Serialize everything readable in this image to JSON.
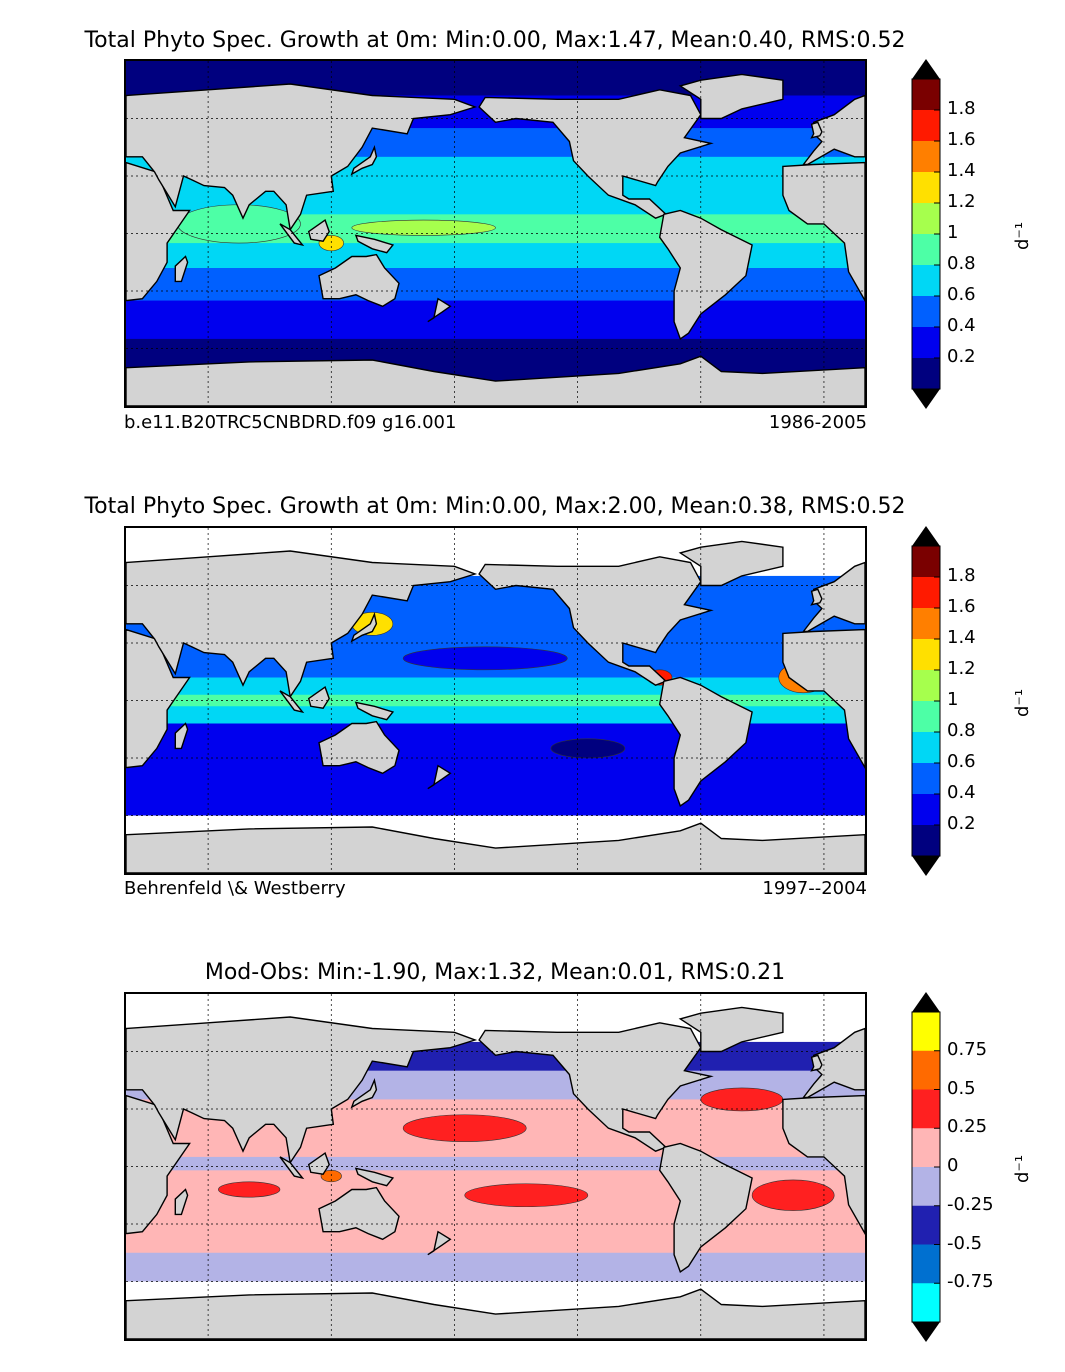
{
  "panels": [
    {
      "id": "model",
      "title": "Total Phyto Spec. Growth at 0m: Min:0.00, Max:1.47, Mean:0.40, RMS:0.52",
      "caption_left": "b.e11.B20TRC5CNBDRD.f09 g16.001",
      "caption_right": "1986-2005",
      "colorbar": {
        "unit": "d⁻¹",
        "ticks": [
          "1.8",
          "1.6",
          "1.4",
          "1.2",
          "1",
          "0.8",
          "0.6",
          "0.4",
          "0.2"
        ],
        "colors": [
          "#7a0000",
          "#ff1a00",
          "#ff7f00",
          "#ffe000",
          "#a6ff4d",
          "#4dffa6",
          "#00d7f5",
          "#0060ff",
          "#0000ee",
          "#00007f"
        ],
        "over_color": "#000000",
        "under_color": "#000000"
      },
      "field": {
        "bands": [
          {
            "lat_north": 90,
            "lat_south": 72,
            "color": "#00007f"
          },
          {
            "lat_north": 72,
            "lat_south": 55,
            "color": "#0000ee"
          },
          {
            "lat_north": 55,
            "lat_south": 40,
            "color": "#0060ff"
          },
          {
            "lat_north": 40,
            "lat_south": 28,
            "color": "#00d7f5"
          },
          {
            "lat_north": 28,
            "lat_south": 10,
            "color": "#00d7f5"
          },
          {
            "lat_north": 10,
            "lat_south": -5,
            "color": "#4dffa6"
          },
          {
            "lat_north": -5,
            "lat_south": -18,
            "color": "#00d7f5"
          },
          {
            "lat_north": -18,
            "lat_south": -35,
            "color": "#0060ff"
          },
          {
            "lat_north": -35,
            "lat_south": -55,
            "color": "#0000ee"
          },
          {
            "lat_north": -55,
            "lat_south": -90,
            "color": "#00007f"
          }
        ],
        "blobs": [
          {
            "lon": 165,
            "lat": 3,
            "rx": 35,
            "ry": 4,
            "color": "#a6ff4d"
          },
          {
            "lon": 120,
            "lat": -5,
            "rx": 6,
            "ry": 4,
            "color": "#ffe000"
          },
          {
            "lon": 75,
            "lat": 5,
            "rx": 30,
            "ry": 10,
            "color": "#4dffa6"
          }
        ]
      }
    },
    {
      "id": "obs",
      "title": "Total Phyto Spec. Growth at 0m: Min:0.00, Max:2.00, Mean:0.38, RMS:0.52",
      "caption_left": "Behrenfeld \\& Westberry",
      "caption_right": "1997--2004",
      "colorbar": {
        "unit": "d⁻¹",
        "ticks": [
          "1.8",
          "1.6",
          "1.4",
          "1.2",
          "1",
          "0.8",
          "0.6",
          "0.4",
          "0.2"
        ],
        "colors": [
          "#7a0000",
          "#ff1a00",
          "#ff7f00",
          "#ffe000",
          "#a6ff4d",
          "#4dffa6",
          "#00d7f5",
          "#0060ff",
          "#0000ee",
          "#00007f"
        ],
        "over_color": "#000000",
        "under_color": "#000000"
      },
      "field": {
        "bands": [
          {
            "lat_north": 90,
            "lat_south": 65,
            "color": "#ffffff"
          },
          {
            "lat_north": 65,
            "lat_south": 45,
            "color": "#0060ff"
          },
          {
            "lat_north": 45,
            "lat_south": 30,
            "color": "#0060ff"
          },
          {
            "lat_north": 30,
            "lat_south": 12,
            "color": "#0060ff"
          },
          {
            "lat_north": 12,
            "lat_south": 3,
            "color": "#00d7f5"
          },
          {
            "lat_north": 3,
            "lat_south": -3,
            "color": "#4dffa6"
          },
          {
            "lat_north": -3,
            "lat_south": -12,
            "color": "#00d7f5"
          },
          {
            "lat_north": -12,
            "lat_south": -40,
            "color": "#0000ee"
          },
          {
            "lat_north": -40,
            "lat_south": -60,
            "color": "#0000ee"
          },
          {
            "lat_north": -60,
            "lat_south": -90,
            "color": "#ffffff"
          }
        ],
        "blobs": [
          {
            "lon": 195,
            "lat": 22,
            "rx": 40,
            "ry": 6,
            "color": "#0000ee"
          },
          {
            "lon": 245,
            "lat": -25,
            "rx": 18,
            "ry": 5,
            "color": "#00007f"
          },
          {
            "lon": 280,
            "lat": 12,
            "rx": 6,
            "ry": 4,
            "color": "#ff1a00"
          },
          {
            "lon": 350,
            "lat": 12,
            "rx": 12,
            "ry": 8,
            "color": "#ff7f00"
          },
          {
            "lon": 140,
            "lat": 40,
            "rx": 10,
            "ry": 6,
            "color": "#ffe000"
          }
        ]
      }
    },
    {
      "id": "diff",
      "title": "Mod-Obs: Min:-1.90, Max:1.32, Mean:0.01, RMS:0.21",
      "caption_left": "",
      "caption_right": "",
      "colorbar": {
        "unit": "d⁻¹",
        "ticks": [
          "0.75",
          "0.5",
          "0.25",
          "0",
          "-0.25",
          "-0.5",
          "-0.75"
        ],
        "colors": [
          "#ffff00",
          "#ff6a00",
          "#ff2020",
          "#ffb6b6",
          "#b3b3e6",
          "#2020b0",
          "#0070d0",
          "#00ffff"
        ],
        "over_color": "#000000",
        "under_color": "#000000"
      },
      "field": {
        "bands": [
          {
            "lat_north": 90,
            "lat_south": 65,
            "color": "#ffffff"
          },
          {
            "lat_north": 65,
            "lat_south": 50,
            "color": "#2020b0"
          },
          {
            "lat_north": 50,
            "lat_south": 35,
            "color": "#b3b3e6"
          },
          {
            "lat_north": 35,
            "lat_south": 5,
            "color": "#ffb6b6"
          },
          {
            "lat_north": 5,
            "lat_south": -2,
            "color": "#b3b3e6"
          },
          {
            "lat_north": -2,
            "lat_south": -30,
            "color": "#ffb6b6"
          },
          {
            "lat_north": -30,
            "lat_south": -45,
            "color": "#ffb6b6"
          },
          {
            "lat_north": -45,
            "lat_south": -60,
            "color": "#b3b3e6"
          },
          {
            "lat_north": -60,
            "lat_south": -90,
            "color": "#ffffff"
          }
        ],
        "blobs": [
          {
            "lon": 185,
            "lat": 20,
            "rx": 30,
            "ry": 7,
            "color": "#ff2020"
          },
          {
            "lon": 215,
            "lat": -15,
            "rx": 30,
            "ry": 6,
            "color": "#ff2020"
          },
          {
            "lon": 320,
            "lat": 35,
            "rx": 20,
            "ry": 6,
            "color": "#ff2020"
          },
          {
            "lon": 345,
            "lat": -15,
            "rx": 20,
            "ry": 8,
            "color": "#ff2020"
          },
          {
            "lon": 80,
            "lat": -12,
            "rx": 15,
            "ry": 4,
            "color": "#ff2020"
          },
          {
            "lon": 120,
            "lat": -5,
            "rx": 5,
            "ry": 3,
            "color": "#ff6a00"
          }
        ]
      }
    }
  ],
  "land_color": "#d3d3d3"
}
